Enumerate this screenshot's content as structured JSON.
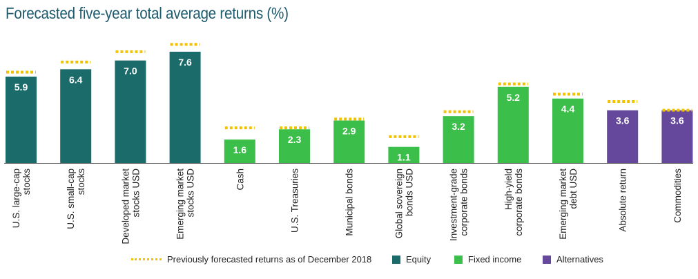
{
  "chart_data": {
    "type": "bar",
    "title": "Forecasted five-year total average returns (%)",
    "categories": [
      [
        "U.S. large-cap",
        "stocks"
      ],
      [
        "U.S. small-cap",
        "stocks"
      ],
      [
        "Developed market",
        "stocks USD"
      ],
      [
        "Emerging market",
        "stocks USD"
      ],
      [
        "Cash"
      ],
      [
        "U.S. Treasuries"
      ],
      [
        "Municipal bonds"
      ],
      [
        "Global sovereign",
        "bonds USD"
      ],
      [
        "Investment-grade",
        "corporate bonds"
      ],
      [
        "High-yield",
        "corporate bonds"
      ],
      [
        "Emerging market",
        "debt USD"
      ],
      [
        "Absolute return"
      ],
      [
        "Commodities"
      ]
    ],
    "values": [
      5.9,
      6.4,
      7.0,
      7.6,
      1.6,
      2.3,
      2.9,
      1.1,
      3.2,
      5.2,
      4.4,
      3.6,
      3.6
    ],
    "value_labels": [
      "5.9",
      "6.4",
      "7.0",
      "7.6",
      "1.6",
      "2.3",
      "2.9",
      "1.1",
      "3.2",
      "5.2",
      "4.4",
      "3.6",
      "3.6"
    ],
    "groups": [
      "equity",
      "equity",
      "equity",
      "equity",
      "fixed",
      "fixed",
      "fixed",
      "fixed",
      "fixed",
      "fixed",
      "fixed",
      "alternatives",
      "alternatives"
    ],
    "previous_forecast": [
      6.2,
      6.9,
      7.6,
      8.1,
      2.4,
      2.4,
      3.0,
      1.8,
      3.5,
      5.4,
      4.7,
      4.2,
      3.6
    ],
    "ylim": [
      0,
      8.6
    ],
    "grid": false,
    "legend_position": "bottom",
    "legend": {
      "previous": "Previously forecasted returns as of December 2018",
      "equity": "Equity",
      "fixed": "Fixed income",
      "alternatives": "Alternatives"
    },
    "colors": {
      "equity": "#1b6b6b",
      "fixed": "#3cbf4a",
      "alternatives": "#65479b",
      "previous": "#f2c200",
      "axis": "#555555"
    }
  }
}
